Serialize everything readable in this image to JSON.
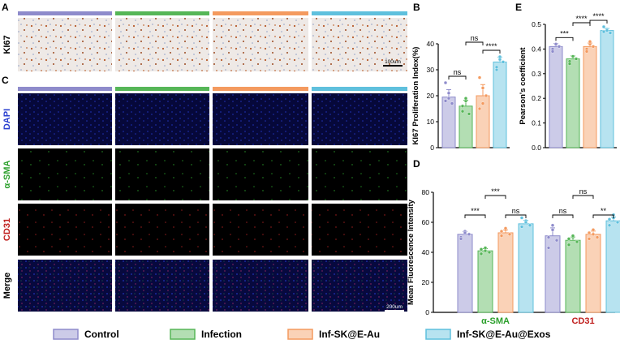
{
  "panels": {
    "A": "A",
    "B": "B",
    "C": "C",
    "D": "D",
    "E": "E"
  },
  "colors": {
    "control": "#8e8bcb",
    "infection": "#56b657",
    "ske": "#f49a5f",
    "exos": "#5fc0dd"
  },
  "histology": {
    "row_label": "KI67",
    "scale": "100um"
  },
  "fluorescence": {
    "rows": [
      "DAPI",
      "α-SMA",
      "CD31",
      "Merge"
    ],
    "row_colors": [
      "#2a3fd0",
      "#2ca02c",
      "#c0201f",
      "#000000"
    ],
    "scale": "200um"
  },
  "legend": [
    "Control",
    "Infection",
    "Inf-SK@E-Au",
    "Inf-SK@E-Au@Exos"
  ],
  "chart_data": [
    {
      "id": "B",
      "type": "bar",
      "ylabel": "KI67 Proliferation Index(%)",
      "ylim": [
        0,
        40
      ],
      "yticks": [
        0,
        10,
        20,
        30,
        40
      ],
      "categories": [
        "Control",
        "Infection",
        "Inf-SK@E-Au",
        "Inf-SK@E-Au@Exos"
      ],
      "values": [
        19.5,
        16,
        20,
        33
      ],
      "points": [
        [
          18,
          21,
          17,
          25,
          19
        ],
        [
          14,
          18,
          13,
          16,
          19
        ],
        [
          15,
          23,
          20,
          27,
          17
        ],
        [
          30,
          34,
          33,
          31,
          35
        ]
      ],
      "significance": [
        {
          "pair": [
            0,
            1
          ],
          "label": "ns"
        },
        {
          "pair": [
            1,
            2
          ],
          "label": "ns"
        },
        {
          "pair": [
            2,
            3
          ],
          "label": "****"
        }
      ]
    },
    {
      "id": "E",
      "type": "bar",
      "ylabel": "Pearson's coefficient",
      "ylim": [
        0,
        0.5
      ],
      "yticks": [
        0.0,
        0.1,
        0.2,
        0.3,
        0.4,
        0.5
      ],
      "categories": [
        "Control",
        "Infection",
        "Inf-SK@E-Au",
        "Inf-SK@E-Au@Exos"
      ],
      "values": [
        0.41,
        0.36,
        0.41,
        0.475
      ],
      "points": [
        [
          0.4,
          0.42,
          0.41,
          0.39,
          0.42
        ],
        [
          0.35,
          0.37,
          0.36,
          0.34,
          0.37
        ],
        [
          0.4,
          0.42,
          0.41,
          0.39,
          0.43
        ],
        [
          0.47,
          0.48,
          0.465,
          0.49,
          0.475
        ]
      ],
      "significance": [
        {
          "pair": [
            0,
            1
          ],
          "label": "***"
        },
        {
          "pair": [
            1,
            2
          ],
          "label": "****"
        },
        {
          "pair": [
            2,
            3
          ],
          "label": "****"
        }
      ]
    },
    {
      "id": "D",
      "type": "bar",
      "ylabel": "Mean Fluorescence Intensity",
      "ylim": [
        0,
        80
      ],
      "yticks": [
        0,
        20,
        40,
        60,
        80
      ],
      "groups": [
        "α-SMA",
        "CD31"
      ],
      "group_colors": [
        "#2ca02c",
        "#c0201f"
      ],
      "series": [
        {
          "values": [
            52,
            51
          ]
        },
        {
          "values": [
            41,
            48
          ]
        },
        {
          "values": [
            53,
            52
          ]
        },
        {
          "values": [
            59,
            61
          ]
        }
      ],
      "points": [
        [
          [
            50,
            54,
            52,
            49,
            53
          ],
          [
            43,
            55,
            48,
            50,
            58
          ]
        ],
        [
          [
            39,
            43,
            40,
            42,
            41
          ],
          [
            45,
            50,
            47,
            49,
            51
          ]
        ],
        [
          [
            51,
            55,
            52,
            54,
            56
          ],
          [
            49,
            55,
            50,
            53,
            52
          ]
        ],
        [
          [
            57,
            61,
            58,
            63,
            60
          ],
          [
            58,
            63,
            60,
            62,
            65
          ]
        ]
      ],
      "significance": [
        {
          "group": 0,
          "pair": [
            0,
            1
          ],
          "label": "***"
        },
        {
          "group": 0,
          "pair": [
            1,
            2
          ],
          "label": "***"
        },
        {
          "group": 0,
          "pair": [
            2,
            3
          ],
          "label": "ns"
        },
        {
          "group": 1,
          "pair": [
            0,
            1
          ],
          "label": "ns"
        },
        {
          "group": 1,
          "pair": [
            1,
            2
          ],
          "label": "ns"
        },
        {
          "group": 1,
          "pair": [
            2,
            3
          ],
          "label": "**"
        }
      ]
    }
  ]
}
